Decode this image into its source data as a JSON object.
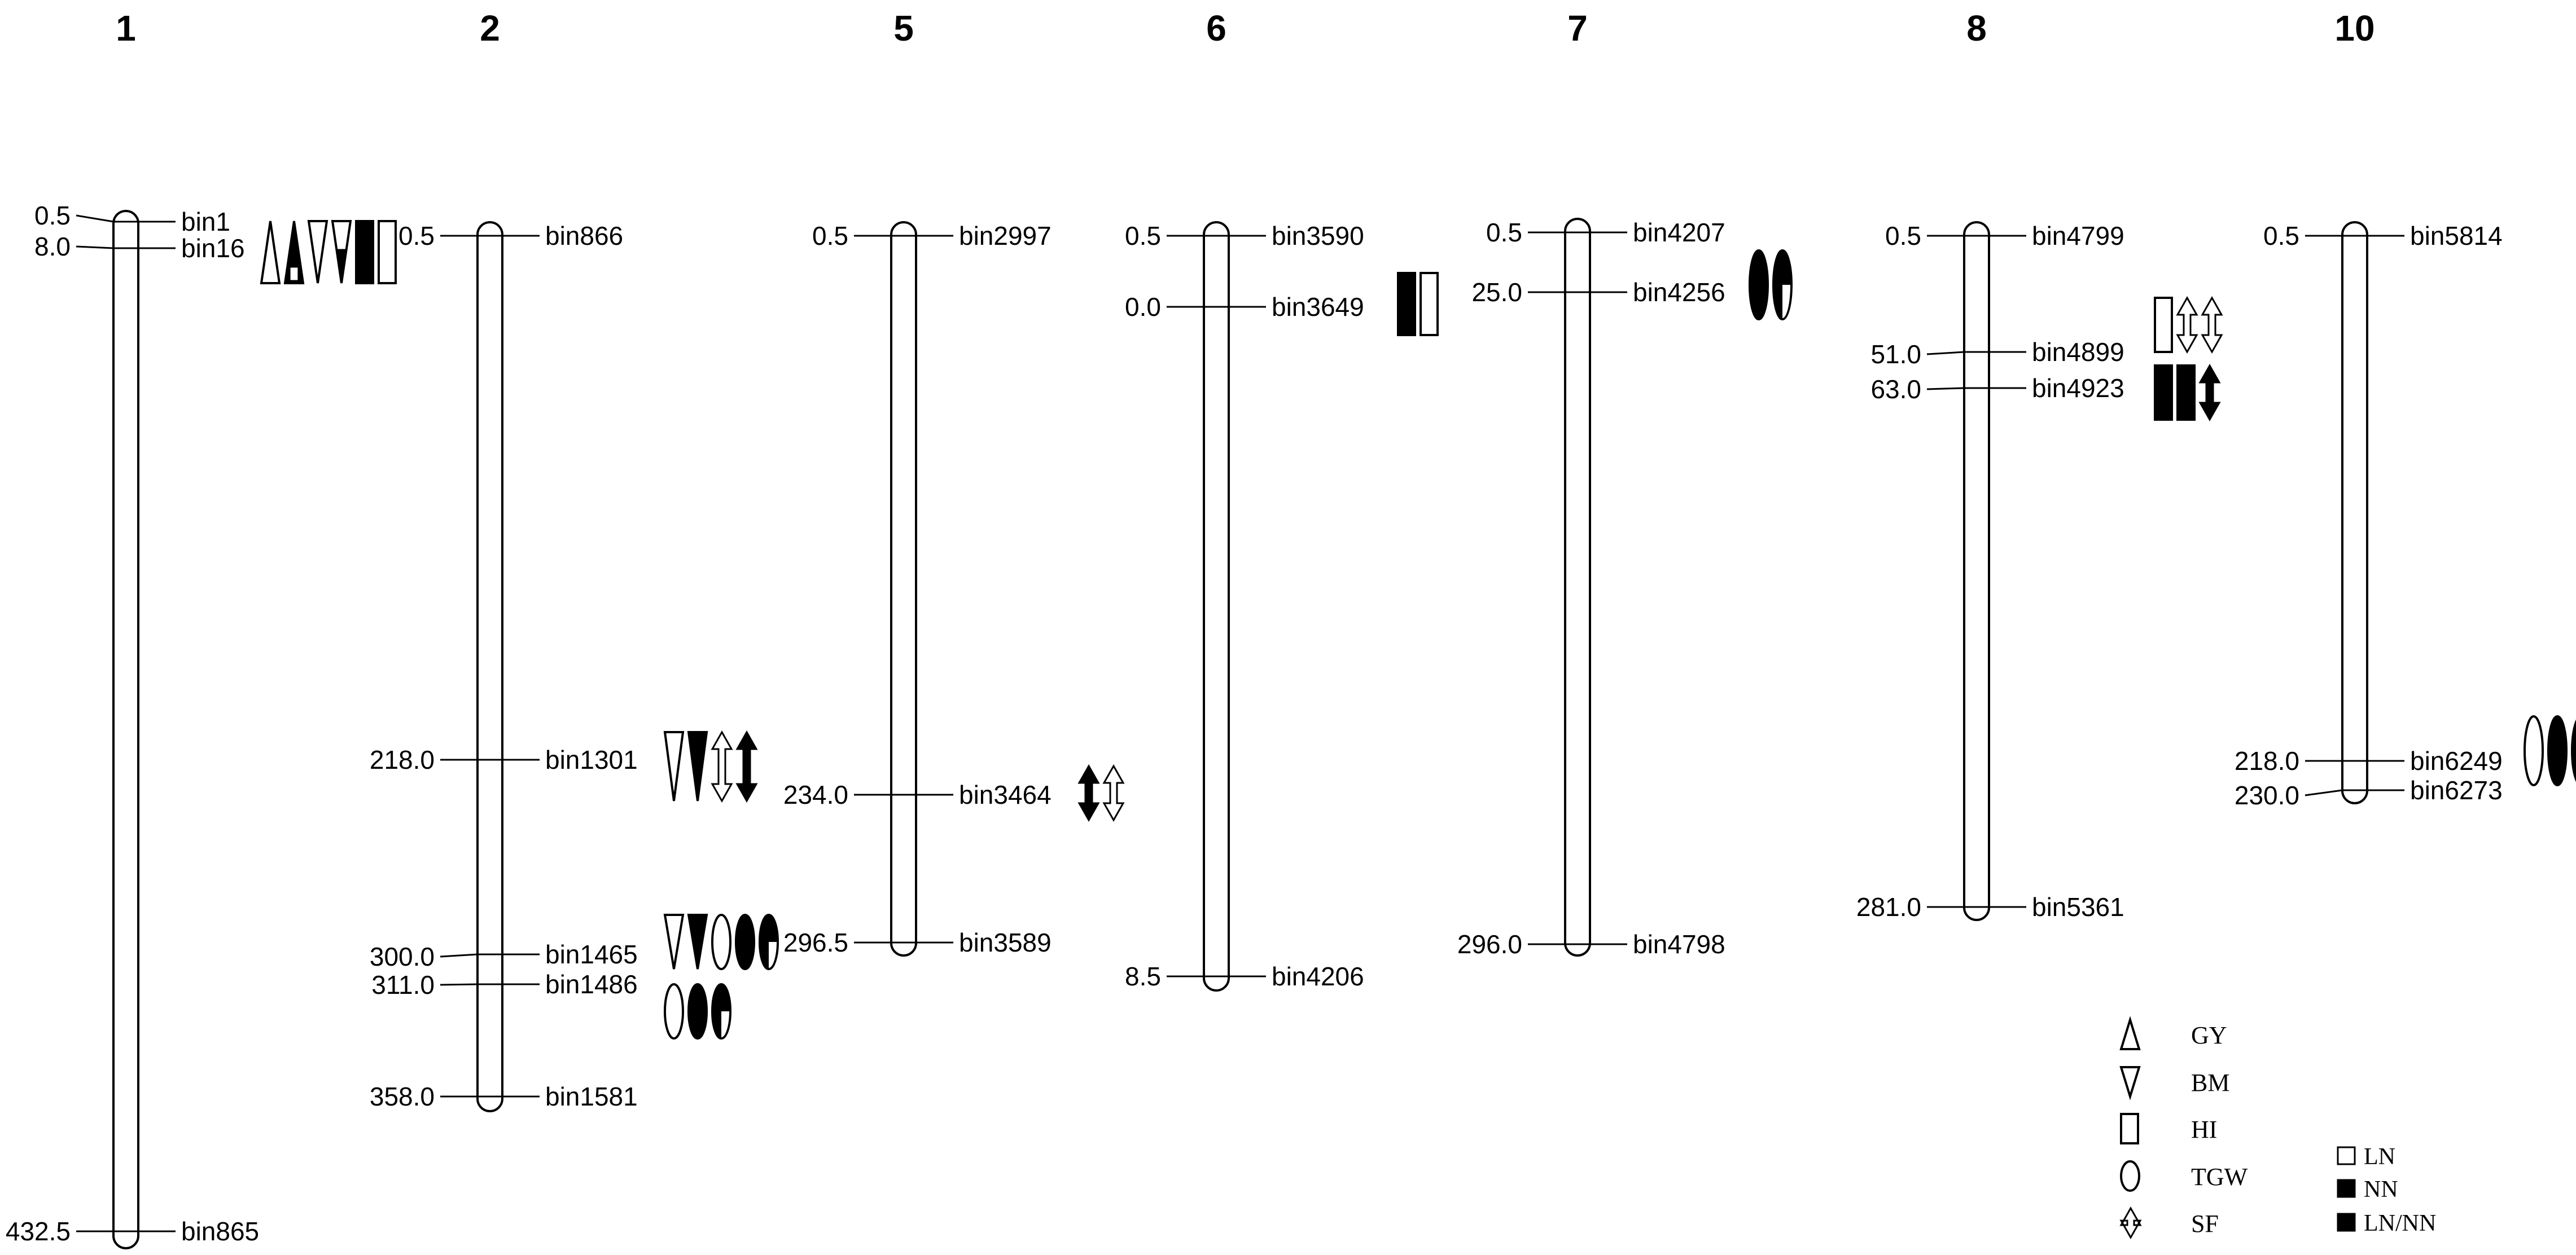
{
  "chromosomes": [
    {
      "name": "1",
      "markers": [
        {
          "pos": "0.5",
          "bin": "bin1"
        },
        {
          "pos": "8.0",
          "bin": "bin16"
        },
        {
          "pos": "432.5",
          "bin": "bin865"
        }
      ],
      "qtl_groups": [
        {
          "at_marker": "bin16",
          "symbols": [
            {
              "trait": "GY",
              "fill": "LN"
            },
            {
              "trait": "GY",
              "fill": "NN"
            },
            {
              "trait": "BM",
              "fill": "LN"
            },
            {
              "trait": "BM",
              "fill": "LN/NN"
            },
            {
              "trait": "HI",
              "fill": "NN"
            },
            {
              "trait": "HI",
              "fill": "LN"
            }
          ]
        }
      ]
    },
    {
      "name": "2",
      "markers": [
        {
          "pos": "0.5",
          "bin": "bin866"
        },
        {
          "pos": "218.0",
          "bin": "bin1301"
        },
        {
          "pos": "300.0",
          "bin": "bin1465"
        },
        {
          "pos": "311.0",
          "bin": "bin1486"
        },
        {
          "pos": "358.0",
          "bin": "bin1581"
        }
      ],
      "qtl_groups": [
        {
          "at_marker": "bin1301",
          "symbols": [
            {
              "trait": "BM",
              "fill": "LN"
            },
            {
              "trait": "BM",
              "fill": "NN"
            },
            {
              "trait": "SF",
              "fill": "LN"
            },
            {
              "trait": "SF",
              "fill": "NN"
            }
          ]
        },
        {
          "at_marker": "bin1465",
          "symbols": [
            {
              "trait": "BM",
              "fill": "LN"
            },
            {
              "trait": "BM",
              "fill": "NN"
            },
            {
              "trait": "TGW",
              "fill": "LN"
            },
            {
              "trait": "TGW",
              "fill": "NN"
            },
            {
              "trait": "TGW",
              "fill": "LN/NN"
            }
          ]
        },
        {
          "at_marker": "bin1486",
          "symbols": [
            {
              "trait": "TGW",
              "fill": "LN"
            },
            {
              "trait": "TGW",
              "fill": "NN"
            },
            {
              "trait": "TGW",
              "fill": "LN/NN"
            }
          ]
        }
      ]
    },
    {
      "name": "5",
      "markers": [
        {
          "pos": "0.5",
          "bin": "bin2997"
        },
        {
          "pos": "234.0",
          "bin": "bin3464"
        },
        {
          "pos": "296.5",
          "bin": "bin3589"
        }
      ],
      "qtl_groups": [
        {
          "at_marker": "bin3464",
          "symbols": [
            {
              "trait": "SF",
              "fill": "NN"
            },
            {
              "trait": "SF",
              "fill": "LN"
            }
          ]
        }
      ]
    },
    {
      "name": "6",
      "markers": [
        {
          "pos": "0.5",
          "bin": "bin3590"
        },
        {
          "pos": "0.0",
          "bin": "bin3649"
        },
        {
          "pos": "8.5",
          "bin": "bin4206"
        }
      ],
      "qtl_groups": [
        {
          "at_marker": "bin3649",
          "symbols": [
            {
              "trait": "HI",
              "fill": "NN"
            },
            {
              "trait": "HI",
              "fill": "LN"
            }
          ]
        }
      ]
    },
    {
      "name": "7",
      "markers": [
        {
          "pos": "0.5",
          "bin": "bin4207"
        },
        {
          "pos": "25.0",
          "bin": "bin4256"
        },
        {
          "pos": "296.0",
          "bin": "bin4798"
        }
      ],
      "qtl_groups": [
        {
          "at_marker": "bin4256",
          "symbols": [
            {
              "trait": "TGW",
              "fill": "NN"
            },
            {
              "trait": "TGW",
              "fill": "LN/NN"
            }
          ]
        }
      ]
    },
    {
      "name": "8",
      "markers": [
        {
          "pos": "0.5",
          "bin": "bin4799"
        },
        {
          "pos": "51.0",
          "bin": "bin4899"
        },
        {
          "pos": "63.0",
          "bin": "bin4923"
        },
        {
          "pos": "281.0",
          "bin": "bin5361"
        }
      ],
      "qtl_groups": [
        {
          "at_marker": "bin4899",
          "symbols": [
            {
              "trait": "HI",
              "fill": "LN"
            },
            {
              "trait": "SF",
              "fill": "LN"
            },
            {
              "trait": "SF",
              "fill": "LN"
            }
          ]
        },
        {
          "at_marker": "bin4923",
          "symbols": [
            {
              "trait": "HI",
              "fill": "NN"
            },
            {
              "trait": "HI",
              "fill": "NN"
            },
            {
              "trait": "SF",
              "fill": "NN"
            }
          ]
        }
      ]
    },
    {
      "name": "10",
      "markers": [
        {
          "pos": "0.5",
          "bin": "bin5814"
        },
        {
          "pos": "218.0",
          "bin": "bin6249"
        },
        {
          "pos": "230.0",
          "bin": "bin6273"
        }
      ],
      "qtl_groups": [
        {
          "at_marker": "bin6249",
          "symbols": [
            {
              "trait": "TGW",
              "fill": "LN"
            },
            {
              "trait": "TGW",
              "fill": "NN"
            },
            {
              "trait": "TGW",
              "fill": "LN/NN"
            }
          ]
        }
      ]
    }
  ],
  "legend": {
    "traits": [
      {
        "shape": "triangle-up",
        "label": "GY"
      },
      {
        "shape": "triangle-down",
        "label": "BM"
      },
      {
        "shape": "rectangle",
        "label": "HI"
      },
      {
        "shape": "ellipse",
        "label": "TGW"
      },
      {
        "shape": "double-arrow",
        "label": "SF"
      }
    ],
    "conditions": [
      {
        "style": "open",
        "label": "LN"
      },
      {
        "style": "filled",
        "label": "NN"
      },
      {
        "style": "filled",
        "label": "LN/NN"
      }
    ]
  },
  "colors": {
    "ink": "#000000",
    "paper": "#ffffff"
  }
}
